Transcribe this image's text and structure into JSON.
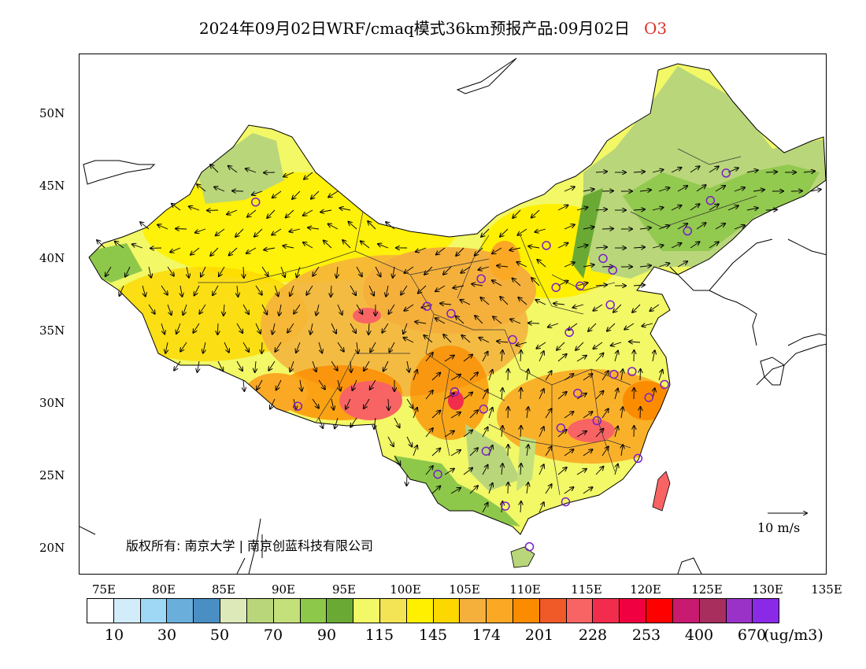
{
  "title": {
    "main": "2024年09月02日WRF/cmaq模式36km预报产品:09月02日",
    "species": "O3"
  },
  "map": {
    "lat_labels": [
      "50N",
      "45N",
      "40N",
      "35N",
      "30N",
      "25N",
      "20N"
    ],
    "lon_labels": [
      "75E",
      "80E",
      "85E",
      "90E",
      "95E",
      "100E",
      "105E",
      "110E",
      "115E",
      "120E",
      "125E",
      "130E",
      "135E"
    ],
    "copyright": "版权所有: 南京大学 | 南京创蓝科技有限公司",
    "wind_scale_label": "10 m/s"
  },
  "colorbar": {
    "colors": [
      "#ffffff",
      "#d2ecfa",
      "#9fd8f5",
      "#6aaedb",
      "#4a8fc4",
      "#dde9b8",
      "#b9d67a",
      "#c4e07a",
      "#8ec84a",
      "#6aaa34",
      "#f2f866",
      "#f2e455",
      "#fff000",
      "#fdd800",
      "#f5b03c",
      "#fba824",
      "#fb8c00",
      "#f05a28",
      "#f86464",
      "#f22c4c",
      "#f00040",
      "#ff0000",
      "#c81a6e",
      "#a82e5e",
      "#9a32c8",
      "#8a2ae6"
    ],
    "labels": [
      "10",
      "30",
      "50",
      "70",
      "90",
      "115",
      "145",
      "174",
      "201",
      "228",
      "253",
      "400",
      "670"
    ],
    "unit": "(ug/m3)"
  },
  "stations": [
    {
      "lon": 87.6,
      "lat": 43.8
    },
    {
      "lon": 91.1,
      "lat": 29.7
    },
    {
      "lon": 101.8,
      "lat": 36.6
    },
    {
      "lon": 103.8,
      "lat": 36.1
    },
    {
      "lon": 106.3,
      "lat": 38.5
    },
    {
      "lon": 111.7,
      "lat": 40.8
    },
    {
      "lon": 112.5,
      "lat": 37.9
    },
    {
      "lon": 114.5,
      "lat": 38.0
    },
    {
      "lon": 116.4,
      "lat": 39.9
    },
    {
      "lon": 117.2,
      "lat": 39.1
    },
    {
      "lon": 113.6,
      "lat": 34.8
    },
    {
      "lon": 108.9,
      "lat": 34.3
    },
    {
      "lon": 117.0,
      "lat": 36.7
    },
    {
      "lon": 104.1,
      "lat": 30.7
    },
    {
      "lon": 106.5,
      "lat": 29.5
    },
    {
      "lon": 114.3,
      "lat": 30.6
    },
    {
      "lon": 112.9,
      "lat": 28.2
    },
    {
      "lon": 115.9,
      "lat": 28.7
    },
    {
      "lon": 117.3,
      "lat": 31.9
    },
    {
      "lon": 118.8,
      "lat": 32.1
    },
    {
      "lon": 121.5,
      "lat": 31.2
    },
    {
      "lon": 120.2,
      "lat": 30.3
    },
    {
      "lon": 119.3,
      "lat": 26.1
    },
    {
      "lon": 113.3,
      "lat": 23.1
    },
    {
      "lon": 108.3,
      "lat": 22.8
    },
    {
      "lon": 110.3,
      "lat": 20.0
    },
    {
      "lon": 102.7,
      "lat": 25.0
    },
    {
      "lon": 106.7,
      "lat": 26.6
    },
    {
      "lon": 123.4,
      "lat": 41.8
    },
    {
      "lon": 125.3,
      "lat": 43.9
    },
    {
      "lon": 126.6,
      "lat": 45.8
    }
  ]
}
